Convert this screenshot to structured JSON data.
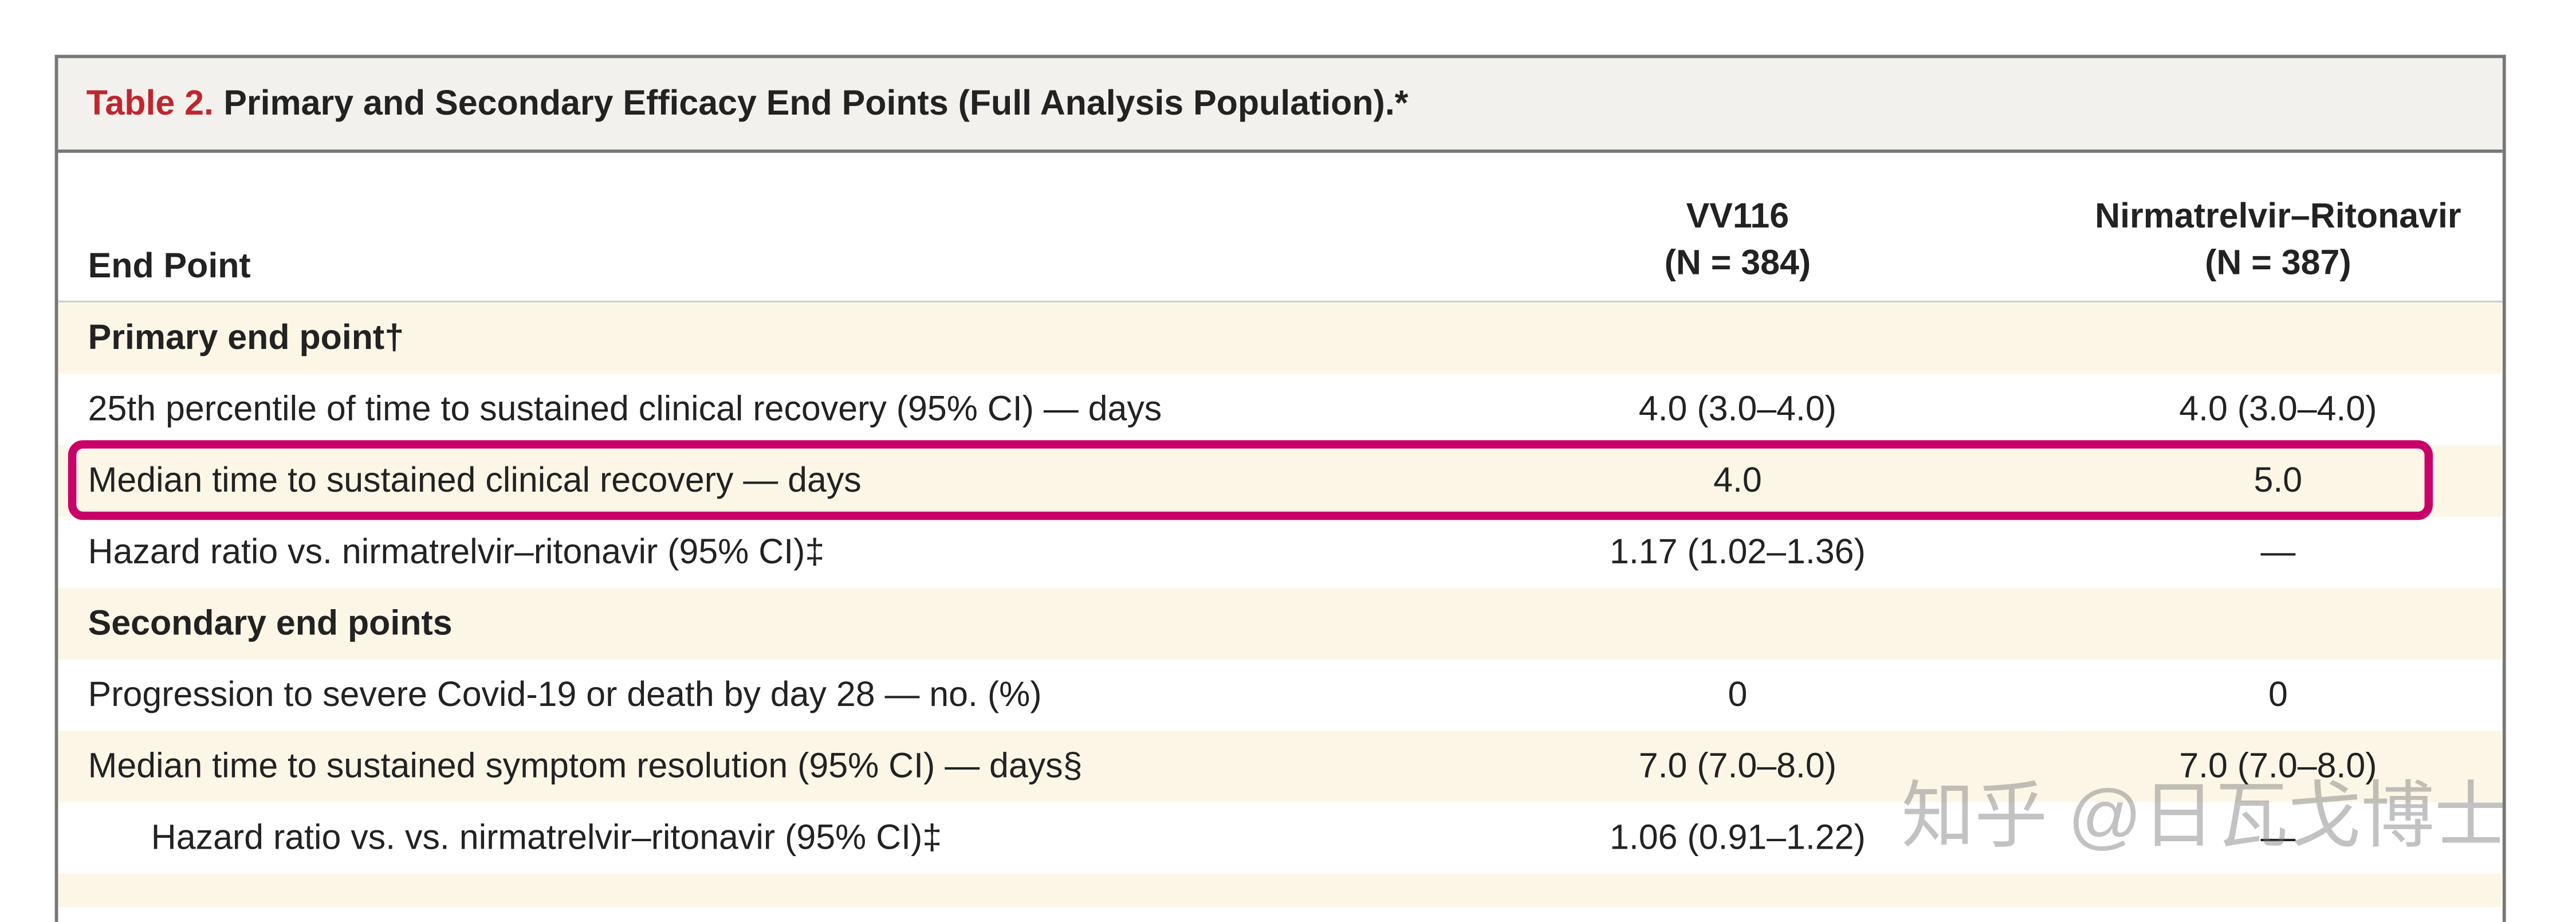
{
  "title": {
    "label": "Table 2.",
    "text": "Primary and Secondary Efficacy End Points (Full Analysis Population).*"
  },
  "table": {
    "header": [
      "End Point",
      "VV116",
      "(N = 384)",
      "Nirmatrelvir–Ritonavir",
      "(N = 387)"
    ],
    "rows": [
      [
        "Primary end point†"
      ],
      [
        "25th percentile of time to sustained clinical recovery (95% CI) — days",
        "4.0 (3.0–4.0)",
        "4.0 (3.0–4.0)"
      ],
      [
        "Median time to sustained clinical recovery — days",
        "4.0",
        "5.0"
      ],
      [
        "Hazard ratio vs. nirmatrelvir–ritonavir (95% CI)‡",
        "1.17 (1.02–1.36)",
        "—"
      ],
      [
        "Secondary end points"
      ],
      [
        "Progression to severe Covid-19 or death by day 28 — no. (%)",
        "0",
        "0"
      ],
      [
        "Median time to sustained symptom resolution (95% CI) — days§",
        "7.0 (7.0–8.0)",
        "7.0 (7.0–8.0)"
      ],
      [
        "Hazard ratio vs. vs. nirmatrelvir–ritonavir (95% CI)‡",
        "1.06 (0.91–1.22)",
        "—"
      ]
    ]
  },
  "watermark": "知乎 @日瓦戈博士"
}
